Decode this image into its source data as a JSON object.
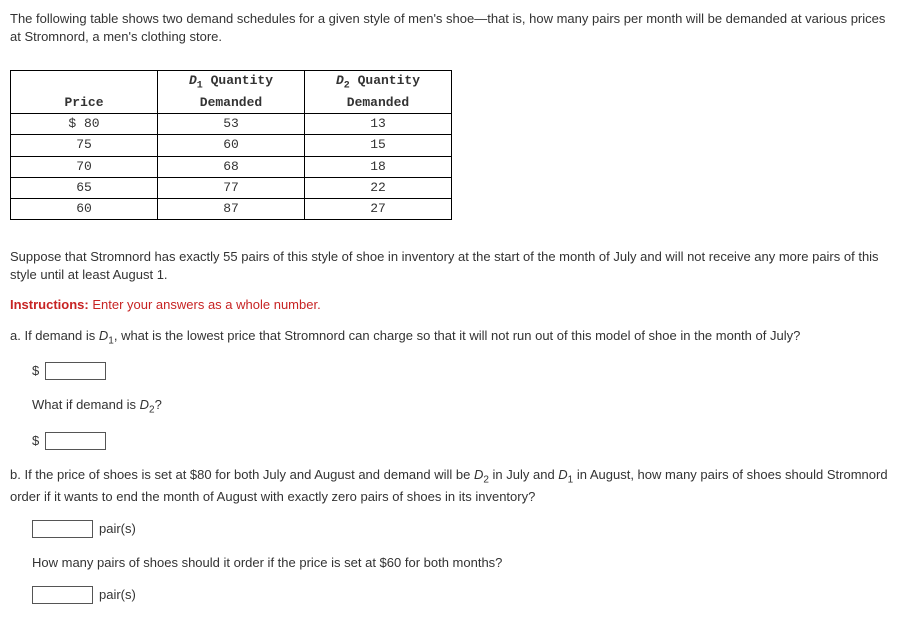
{
  "intro": "The following table shows two demand schedules for a given style of men's shoe—that is, how many pairs per month will be demanded at various prices at Stromnord, a men's clothing store.",
  "table": {
    "headers": {
      "c1": "Price",
      "c2_pre": "D",
      "c2_sub": "1",
      "c2_post": " Quantity",
      "c2_line2": "Demanded",
      "c3_pre": "D",
      "c3_sub": "2",
      "c3_post": " Quantity",
      "c3_line2": "Demanded"
    },
    "rows": [
      {
        "price": "$ 80",
        "d1": "53",
        "d2": "13"
      },
      {
        "price": "75",
        "d1": "60",
        "d2": "15"
      },
      {
        "price": "70",
        "d1": "68",
        "d2": "18"
      },
      {
        "price": "65",
        "d1": "77",
        "d2": "22"
      },
      {
        "price": "60",
        "d1": "87",
        "d2": "27"
      }
    ]
  },
  "para2": "Suppose that Stromnord has exactly 55 pairs of this style of shoe in inventory at the start of the month of July and will not receive any more pairs of this style until at least August 1.",
  "instructions_label": "Instructions:",
  "instructions_text": " Enter your answers as a whole number.",
  "qa": {
    "pre": "a. If demand is ",
    "d_pre": "D",
    "d_sub": "1",
    "post": ", what is the lowest price that Stromnord can charge so that it will not run out of this model of shoe in the month of July?"
  },
  "dollar": "$",
  "qa2_pre": "What if demand is ",
  "qa2_d_pre": "D",
  "qa2_d_sub": "2",
  "qa2_post": "?",
  "qb": {
    "pre": "b. If the price of shoes is set at $80 for both July and August and demand will be ",
    "d2_pre": "D",
    "d2_sub": "2",
    "mid1": " in July and ",
    "d1_pre": "D",
    "d1_sub": "1",
    "post": " in August, how many pairs of shoes should Stromnord order if it wants to end the month of August with exactly zero pairs of shoes in its inventory?"
  },
  "pairs_label": "pair(s)",
  "qb2": "How many pairs of shoes should it order if the price is set at $60 for both months?"
}
